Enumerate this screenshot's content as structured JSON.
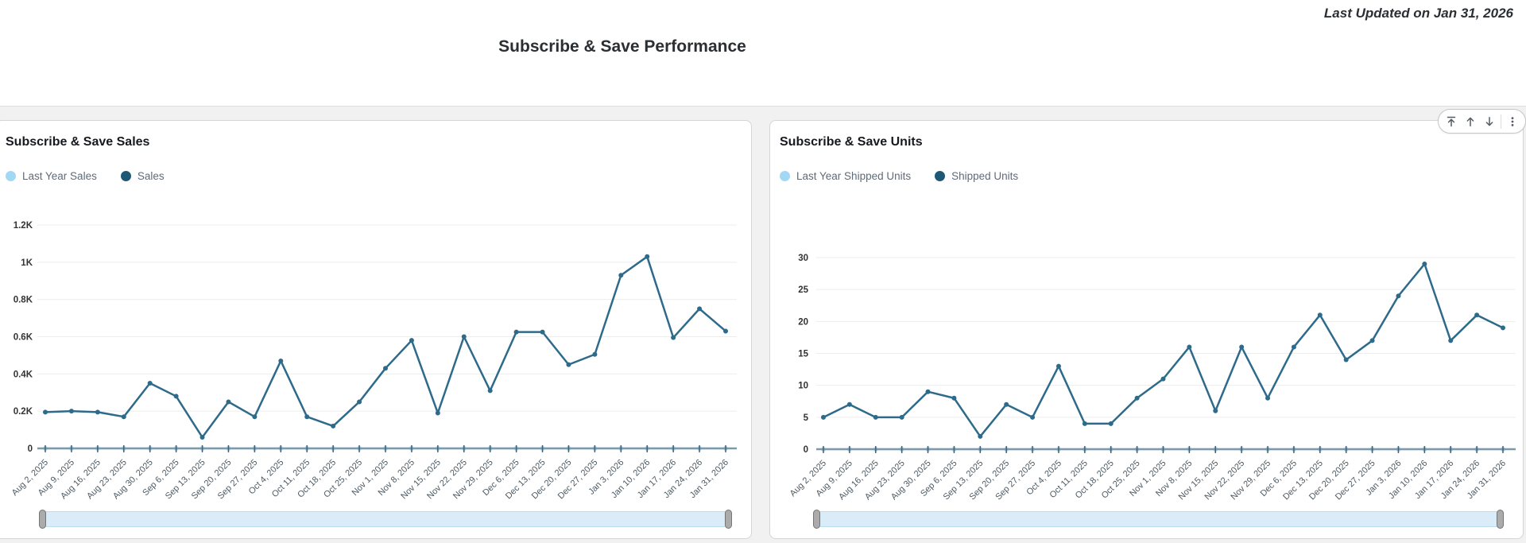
{
  "page": {
    "last_updated": "Last Updated on Jan 31, 2026",
    "title": "Subscribe & Save Performance"
  },
  "toolbar": {
    "buttons": [
      "move-to-top",
      "move-up",
      "move-down",
      "more-options"
    ]
  },
  "chart_data": [
    {
      "type": "line",
      "title": "Subscribe & Save Sales",
      "legend_position": "top-left",
      "grid": "horizontal",
      "legend": [
        {
          "label": "Last Year Sales",
          "color": "#a3d8f4"
        },
        {
          "label": "Sales",
          "color": "#1f5875"
        }
      ],
      "categories": [
        "Aug 2, 2025",
        "Aug 9, 2025",
        "Aug 16, 2025",
        "Aug 23, 2025",
        "Aug 30, 2025",
        "Sep 6, 2025",
        "Sep 13, 2025",
        "Sep 20, 2025",
        "Sep 27, 2025",
        "Oct 4, 2025",
        "Oct 11, 2025",
        "Oct 18, 2025",
        "Oct 25, 2025",
        "Nov 1, 2025",
        "Nov 8, 2025",
        "Nov 15, 2025",
        "Nov 22, 2025",
        "Nov 29, 2025",
        "Dec 6, 2025",
        "Dec 13, 2025",
        "Dec 20, 2025",
        "Dec 27, 2025",
        "Jan 3, 2026",
        "Jan 10, 2026",
        "Jan 17, 2026",
        "Jan 24, 2026",
        "Jan 31, 2026"
      ],
      "series": [
        {
          "name": "Last Year Sales",
          "color": "#a3d8f4",
          "values": [
            0,
            0,
            0,
            0,
            0,
            0,
            0,
            0,
            0,
            0,
            0,
            0,
            0,
            0,
            0,
            0,
            0,
            0,
            0,
            0,
            0,
            0,
            0,
            0,
            0,
            0,
            0
          ]
        },
        {
          "name": "Sales",
          "color": "#2e6a8a",
          "values": [
            195,
            200,
            195,
            170,
            350,
            280,
            60,
            250,
            170,
            470,
            170,
            120,
            250,
            430,
            580,
            190,
            600,
            310,
            625,
            625,
            450,
            505,
            930,
            1030,
            595,
            750,
            630
          ]
        }
      ],
      "ylim": [
        0,
        1200
      ],
      "y_tick_labels": [
        "0",
        "0.2K",
        "0.4K",
        "0.6K",
        "0.8K",
        "1K",
        "1.2K"
      ],
      "xlabel": "",
      "ylabel": ""
    },
    {
      "type": "line",
      "title": "Subscribe & Save Units",
      "legend_position": "top-left",
      "grid": "horizontal",
      "legend": [
        {
          "label": "Last Year Shipped Units",
          "color": "#a3d8f4"
        },
        {
          "label": "Shipped Units",
          "color": "#1f5875"
        }
      ],
      "categories": [
        "Aug 2, 2025",
        "Aug 9, 2025",
        "Aug 16, 2025",
        "Aug 23, 2025",
        "Aug 30, 2025",
        "Sep 6, 2025",
        "Sep 13, 2025",
        "Sep 20, 2025",
        "Sep 27, 2025",
        "Oct 4, 2025",
        "Oct 11, 2025",
        "Oct 18, 2025",
        "Oct 25, 2025",
        "Nov 1, 2025",
        "Nov 8, 2025",
        "Nov 15, 2025",
        "Nov 22, 2025",
        "Nov 29, 2025",
        "Dec 6, 2025",
        "Dec 13, 2025",
        "Dec 20, 2025",
        "Dec 27, 2025",
        "Jan 3, 2026",
        "Jan 10, 2026",
        "Jan 17, 2026",
        "Jan 24, 2026",
        "Jan 31, 2026"
      ],
      "series": [
        {
          "name": "Last Year Shipped Units",
          "color": "#a3d8f4",
          "values": [
            0,
            0,
            0,
            0,
            0,
            0,
            0,
            0,
            0,
            0,
            0,
            0,
            0,
            0,
            0,
            0,
            0,
            0,
            0,
            0,
            0,
            0,
            0,
            0,
            0,
            0,
            0
          ]
        },
        {
          "name": "Shipped Units",
          "color": "#2e6a8a",
          "values": [
            5,
            7,
            5,
            5,
            9,
            8,
            2,
            7,
            5,
            13,
            4,
            4,
            8,
            11,
            16,
            6,
            16,
            8,
            16,
            21,
            14,
            17,
            24,
            29,
            17,
            21,
            19
          ]
        }
      ],
      "ylim": [
        0,
        30
      ],
      "y_tick_labels": [
        "0",
        "5",
        "10",
        "15",
        "20",
        "25",
        "30"
      ],
      "xlabel": "",
      "ylabel": ""
    }
  ]
}
